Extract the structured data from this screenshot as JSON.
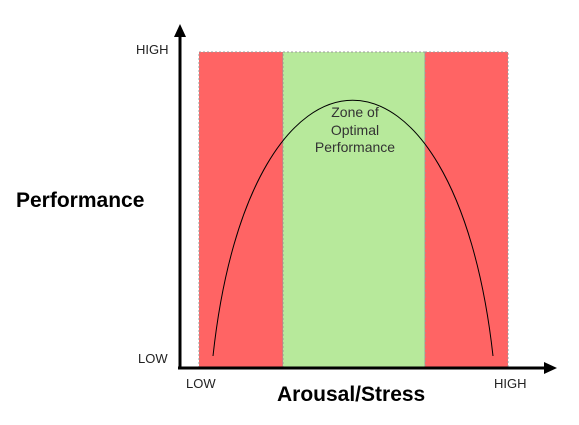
{
  "y_axis": {
    "title": "Performance",
    "high_label": "HIGH",
    "low_label": "LOW"
  },
  "x_axis": {
    "title": "Arousal/Stress",
    "low_label": "LOW",
    "high_label": "HIGH"
  },
  "zones": {
    "optimal_label_lines": [
      "Zone of",
      "Optimal",
      "Performance"
    ],
    "optimal_color": "#b7e99b",
    "poor_color": "#ff6464"
  },
  "curve_color": "#000000",
  "axis_color": "#000000"
}
